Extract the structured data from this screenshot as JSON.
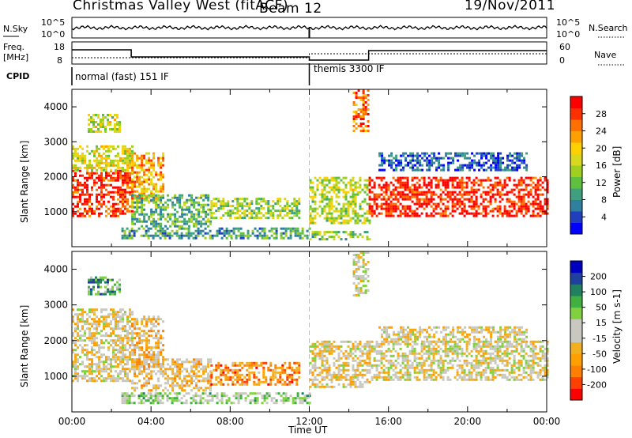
{
  "header": {
    "title": "Christmas Valley West (fitACF)",
    "beam": "Beam 12",
    "date": "19/Nov/2011"
  },
  "panels": {
    "nsky_label": "N.Sky",
    "nsearch_label": "N.Search",
    "freq_label": "Freq.",
    "freq_unit": "[MHz]",
    "nave_label": "Nave",
    "cpid_label": "CPID",
    "cpid_segments": [
      {
        "label": "normal (fast) 151 IF",
        "start_hour": 0
      },
      {
        "label": "themis 3300 IF",
        "start_hour": 12
      }
    ],
    "noise_ticks": [
      "10^5",
      "10^0"
    ],
    "freq_ticks": [
      "18",
      "8"
    ],
    "nave_ticks": [
      "60",
      "0"
    ]
  },
  "chart_data": [
    {
      "type": "heatmap",
      "name": "power",
      "ylabel": "Slant Range [km]",
      "xlabel": "",
      "ylim": [
        0,
        4500
      ],
      "yticks": [
        1000,
        2000,
        3000,
        4000
      ],
      "xlim": [
        0,
        24
      ],
      "colorbar": {
        "label": "Power [dB]",
        "ticks": [
          "28",
          "24",
          "20",
          "16",
          "12",
          "8",
          "4"
        ],
        "colors": [
          "#0000ff",
          "#1f3fbf",
          "#2f7f9f",
          "#3fa07f",
          "#5fbf3f",
          "#9fd020",
          "#d8d81f",
          "#ffd000",
          "#ffa000",
          "#ff7000",
          "#ff3000",
          "#ff0000"
        ]
      },
      "regions": [
        {
          "x0": 0.0,
          "x1": 3.0,
          "y0": 900,
          "y1": 2200,
          "level": 0.9
        },
        {
          "x0": 0.0,
          "x1": 3.0,
          "y0": 2200,
          "y1": 2900,
          "level": 0.55
        },
        {
          "x0": 0.8,
          "x1": 2.4,
          "y0": 3300,
          "y1": 3800,
          "level": 0.5
        },
        {
          "x0": 3.0,
          "x1": 4.6,
          "y0": 1300,
          "y1": 2700,
          "level": 0.7
        },
        {
          "x0": 3.0,
          "x1": 7.0,
          "y0": 600,
          "y1": 1500,
          "level": 0.35
        },
        {
          "x0": 7.0,
          "x1": 11.5,
          "y0": 800,
          "y1": 1400,
          "level": 0.45
        },
        {
          "x0": 2.5,
          "x1": 12.0,
          "y0": 250,
          "y1": 550,
          "level": 0.3
        },
        {
          "x0": 12.0,
          "x1": 15.0,
          "y0": 700,
          "y1": 2000,
          "level": 0.5
        },
        {
          "x0": 12.0,
          "x1": 15.0,
          "y0": 200,
          "y1": 450,
          "level": 0.4
        },
        {
          "x0": 14.2,
          "x1": 15.0,
          "y0": 3300,
          "y1": 4500,
          "level": 0.8
        },
        {
          "x0": 15.0,
          "x1": 24.0,
          "y0": 900,
          "y1": 2000,
          "level": 0.92
        },
        {
          "x0": 15.5,
          "x1": 23.0,
          "y0": 2200,
          "y1": 2700,
          "level": 0.15
        }
      ]
    },
    {
      "type": "heatmap",
      "name": "velocity",
      "ylabel": "Slant Range [km]",
      "xlabel": "Time UT",
      "ylim": [
        0,
        4500
      ],
      "yticks": [
        1000,
        2000,
        3000,
        4000
      ],
      "xlim": [
        0,
        24
      ],
      "xticks": [
        "00:00",
        "04:00",
        "08:00",
        "12:00",
        "16:00",
        "20:00",
        "00:00"
      ],
      "colorbar": {
        "label": "Velocity [m s-1]",
        "ticks": [
          "200",
          "100",
          "50",
          "15",
          "-15",
          "-50",
          "-100",
          "-200"
        ],
        "colors": [
          "#ff0000",
          "#ff4000",
          "#ff8000",
          "#ffa000",
          "#f0b020",
          "#c8c8c0",
          "#c8c8c0",
          "#80d040",
          "#40b040",
          "#208060",
          "#2040a0",
          "#0000c0"
        ]
      },
      "regions": [
        {
          "x0": 0.0,
          "x1": 3.0,
          "y0": 900,
          "y1": 2900,
          "level": 0.45
        },
        {
          "x0": 0.8,
          "x1": 2.4,
          "y0": 3300,
          "y1": 3800,
          "level": 0.7
        },
        {
          "x0": 3.0,
          "x1": 4.6,
          "y0": 1300,
          "y1": 2700,
          "level": 0.35
        },
        {
          "x0": 3.0,
          "x1": 7.0,
          "y0": 600,
          "y1": 1500,
          "level": 0.4
        },
        {
          "x0": 7.0,
          "x1": 11.5,
          "y0": 800,
          "y1": 1400,
          "level": 0.25
        },
        {
          "x0": 2.5,
          "x1": 12.0,
          "y0": 250,
          "y1": 550,
          "level": 0.6
        },
        {
          "x0": 12.0,
          "x1": 15.0,
          "y0": 700,
          "y1": 2000,
          "level": 0.45
        },
        {
          "x0": 14.2,
          "x1": 15.0,
          "y0": 3300,
          "y1": 4500,
          "level": 0.5
        },
        {
          "x0": 15.0,
          "x1": 24.0,
          "y0": 900,
          "y1": 2000,
          "level": 0.48
        },
        {
          "x0": 15.5,
          "x1": 23.0,
          "y0": 2000,
          "y1": 2400,
          "level": 0.45
        }
      ]
    }
  ]
}
